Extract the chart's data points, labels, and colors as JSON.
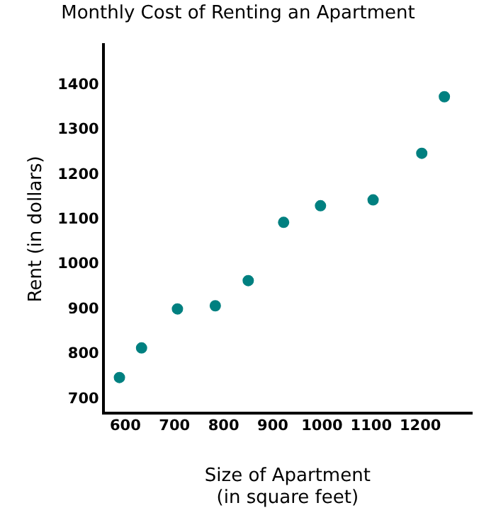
{
  "chart_data": {
    "type": "scatter",
    "title": "Monthly Cost of Renting an Apartment",
    "xlabel": "Size of Apartment\n(in square feet)",
    "ylabel": "Rent (in dollars)",
    "x": [
      588,
      633,
      706,
      783,
      850,
      922,
      997,
      1104,
      1203,
      1249
    ],
    "series": [
      {
        "color": "#008080",
        "values": [
          748,
          814,
          901,
          908,
          964,
          1094,
          1131,
          1144,
          1248,
          1374
        ]
      }
    ],
    "xlim": [
      555,
      1305
    ],
    "xticks": [
      600,
      700,
      800,
      900,
      1000,
      1100,
      1200
    ],
    "ylim": [
      668,
      1490
    ],
    "yticks": [
      700,
      800,
      900,
      1000,
      1100,
      1200,
      1300,
      1400
    ],
    "grid": false,
    "legend": false,
    "marker": "circle"
  }
}
